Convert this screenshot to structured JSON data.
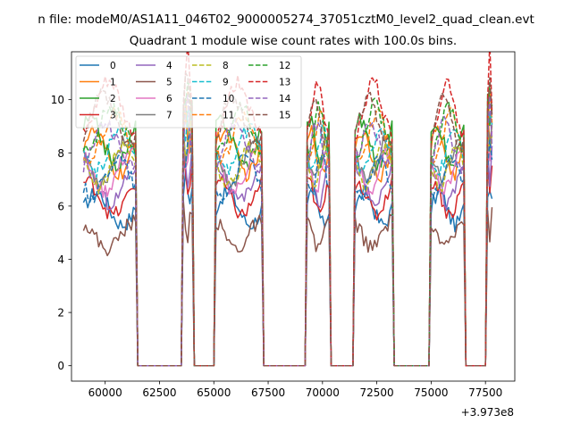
{
  "figure": {
    "suptitle": "n file: modeM0/AS1A11_046T02_9000005274_37051cztM0_level2_quad_clean.evt",
    "title": "Quadrant 1 module wise count rates with 100.0s bins."
  },
  "chart_data": {
    "type": "line",
    "title": "Quadrant 1 module wise count rates with 100.0s bins.",
    "xlabel": "",
    "ylabel": "",
    "x_offset_label": "+3.973e8",
    "xlim": [
      58450,
      78850
    ],
    "ylim": [
      -0.58,
      11.8
    ],
    "xticks": [
      60000,
      62500,
      65000,
      67500,
      70000,
      72500,
      75000,
      77500
    ],
    "xtick_labels": [
      "60000",
      "62500",
      "65000",
      "67500",
      "70000",
      "72500",
      "75000",
      "77500"
    ],
    "yticks": [
      0,
      2,
      4,
      6,
      8,
      10
    ],
    "ytick_labels": [
      "0",
      "2",
      "4",
      "6",
      "8",
      "10"
    ],
    "grid": false,
    "legend_placement": "upper-left",
    "legend_columns": 4,
    "bin_seconds": 100,
    "x_start": 59000,
    "x_end": 77800,
    "zero_value": 0,
    "active_intervals": [
      {
        "start": 59000,
        "end": 61400
      },
      {
        "start": 63600,
        "end": 64000
      },
      {
        "start": 65100,
        "end": 67200
      },
      {
        "start": 69300,
        "end": 70300
      },
      {
        "start": 71500,
        "end": 73200
      },
      {
        "start": 75000,
        "end": 76500
      },
      {
        "start": 77600,
        "end": 77800
      }
    ],
    "series": [
      {
        "name": "0",
        "color": "#1f77b4",
        "dash": "solid",
        "level": 5.9
      },
      {
        "name": "1",
        "color": "#ff7f0e",
        "dash": "solid",
        "level": 8.0
      },
      {
        "name": "2",
        "color": "#2ca02c",
        "dash": "solid",
        "level": 8.4
      },
      {
        "name": "3",
        "color": "#d62728",
        "dash": "solid",
        "level": 6.3
      },
      {
        "name": "4",
        "color": "#9467bd",
        "dash": "solid",
        "level": 6.8
      },
      {
        "name": "5",
        "color": "#8c564b",
        "dash": "solid",
        "level": 4.9
      },
      {
        "name": "6",
        "color": "#e377c2",
        "dash": "solid",
        "level": 7.3
      },
      {
        "name": "7",
        "color": "#7f7f7f",
        "dash": "solid",
        "level": 7.7
      },
      {
        "name": "8",
        "color": "#bcbd22",
        "dash": "dashed",
        "level": 7.5
      },
      {
        "name": "9",
        "color": "#17becf",
        "dash": "dashed",
        "level": 8.1
      },
      {
        "name": "10",
        "color": "#1f77b4",
        "dash": "dashed",
        "level": 7.1
      },
      {
        "name": "11",
        "color": "#ff7f0e",
        "dash": "dashed",
        "level": 8.6
      },
      {
        "name": "12",
        "color": "#2ca02c",
        "dash": "dashed",
        "level": 8.9
      },
      {
        "name": "13",
        "color": "#d62728",
        "dash": "dashed",
        "level": 9.7
      },
      {
        "name": "14",
        "color": "#9467bd",
        "dash": "dashed",
        "level": 8.3
      },
      {
        "name": "15",
        "color": "#8c564b",
        "dash": "dashed",
        "level": 9.2
      }
    ]
  }
}
